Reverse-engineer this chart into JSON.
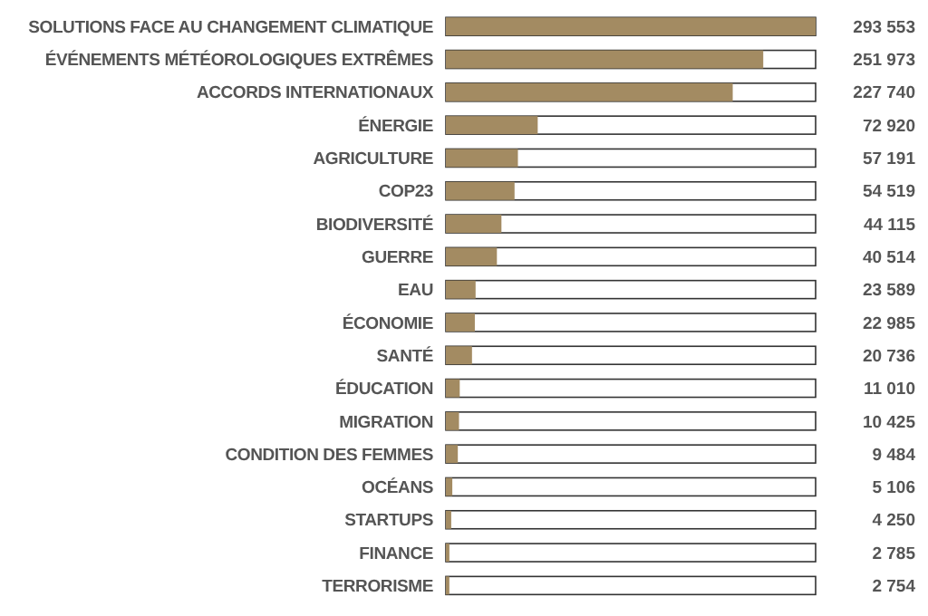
{
  "chart_data": {
    "type": "bar",
    "orientation": "horizontal",
    "categories": [
      "SOLUTIONS FACE AU CHANGEMENT CLIMATIQUE",
      "ÉVÉNEMENTS MÉTÉOROLOGIQUES EXTRÊMES",
      "ACCORDS INTERNATIONAUX",
      "ÉNERGIE",
      "AGRICULTURE",
      "COP23",
      "BIODIVERSITÉ",
      "GUERRE",
      "EAU",
      "ÉCONOMIE",
      "SANTÉ",
      "ÉDUCATION",
      "MIGRATION",
      "CONDITION DES FEMMES",
      "OCÉANS",
      "STARTUPS",
      "FINANCE",
      "TERRORISME"
    ],
    "values": [
      293553,
      251973,
      227740,
      72920,
      57191,
      54519,
      44115,
      40514,
      23589,
      22985,
      20736,
      11010,
      10425,
      9484,
      5106,
      4250,
      2785,
      2754
    ],
    "value_labels": [
      "293 553",
      "251 973",
      "227 740",
      "72 920",
      "57 191",
      "54 519",
      "44 115",
      "40 514",
      "23 589",
      "22 985",
      "20 736",
      "11 010",
      "10 425",
      "9 484",
      "5 106",
      "4 250",
      "2 785",
      "2 754"
    ],
    "color": "#a38b62",
    "tick_labels": "y"
  }
}
